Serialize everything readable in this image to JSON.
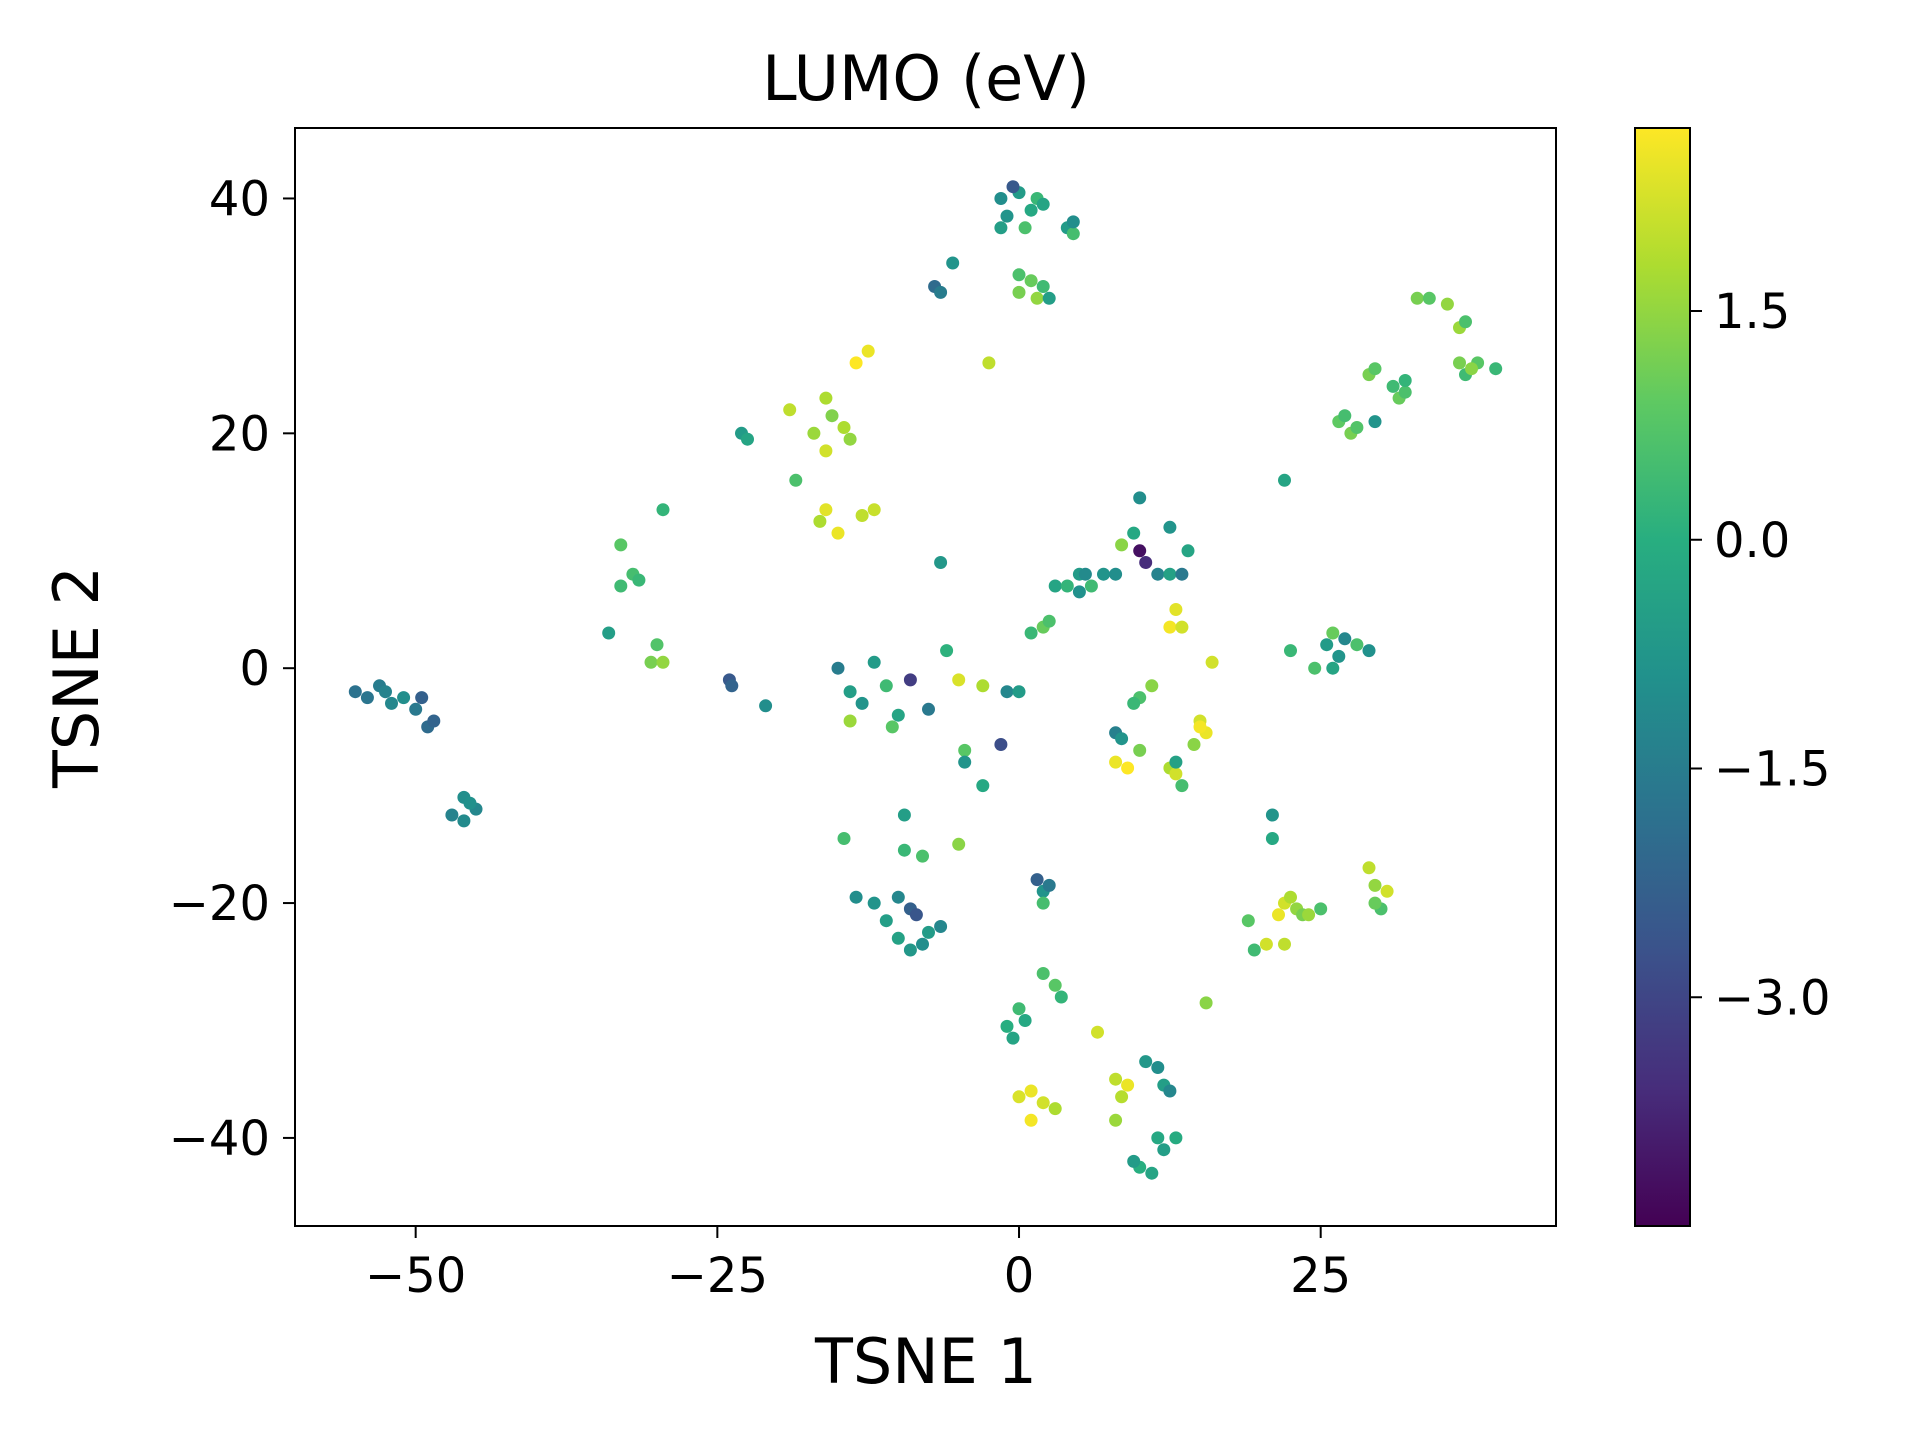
{
  "chart_data": {
    "type": "scatter",
    "title": "LUMO (eV)",
    "xlabel": "TSNE 1",
    "ylabel": "TSNE 2",
    "xlim": [
      -60,
      44.5
    ],
    "ylim": [
      -47.5,
      46
    ],
    "xticks": [
      -50,
      -25,
      0,
      25
    ],
    "xtick_labels": [
      "−50",
      "−25",
      "0",
      "25"
    ],
    "yticks": [
      -40,
      -20,
      0,
      20,
      40
    ],
    "ytick_labels": [
      "−40",
      "−20",
      "0",
      "20",
      "40"
    ],
    "grid": false,
    "legend": "none",
    "colorbar": {
      "label": "",
      "colormap": "viridis",
      "range": [
        -4.5,
        2.7
      ],
      "ticks": [
        -3.0,
        -1.5,
        0.0,
        1.5
      ],
      "tick_labels": [
        "−3.0",
        "−1.5",
        "0.0",
        "1.5"
      ]
    },
    "points": [
      {
        "x": -54,
        "y": -2.5,
        "c": -1.7
      },
      {
        "x": -53,
        "y": -1.5,
        "c": -1.5
      },
      {
        "x": -52,
        "y": -3,
        "c": -1.2
      },
      {
        "x": -51,
        "y": -2.5,
        "c": -1.0
      },
      {
        "x": -50,
        "y": -3.5,
        "c": -1.6
      },
      {
        "x": -49,
        "y": -5,
        "c": -2.0
      },
      {
        "x": -48.5,
        "y": -4.5,
        "c": -2.2
      },
      {
        "x": -49.5,
        "y": -2.5,
        "c": -2.3
      },
      {
        "x": -55,
        "y": -2,
        "c": -1.8
      },
      {
        "x": -52.5,
        "y": -2,
        "c": -1.3
      },
      {
        "x": -46,
        "y": -11,
        "c": -1.0
      },
      {
        "x": -45,
        "y": -12,
        "c": -1.2
      },
      {
        "x": -47,
        "y": -12.5,
        "c": -1.3
      },
      {
        "x": -46,
        "y": -13,
        "c": -1.1
      },
      {
        "x": -45.5,
        "y": -11.5,
        "c": -0.9
      },
      {
        "x": -33,
        "y": 10.5,
        "c": 0.8
      },
      {
        "x": -32,
        "y": 8,
        "c": 0.5
      },
      {
        "x": -31.5,
        "y": 7.5,
        "c": 0.3
      },
      {
        "x": -33,
        "y": 7,
        "c": 0.4
      },
      {
        "x": -34,
        "y": 3,
        "c": -0.5
      },
      {
        "x": -29.5,
        "y": 13.5,
        "c": 0.2
      },
      {
        "x": -30.5,
        "y": 0.5,
        "c": 1.2
      },
      {
        "x": -29.5,
        "y": 0.5,
        "c": 1.5
      },
      {
        "x": -30,
        "y": 2,
        "c": 0.7
      },
      {
        "x": -24,
        "y": -1,
        "c": -2.5
      },
      {
        "x": -23.8,
        "y": -1.5,
        "c": -2.2
      },
      {
        "x": -21,
        "y": -3.2,
        "c": -1.0
      },
      {
        "x": -23,
        "y": 20,
        "c": -0.6
      },
      {
        "x": -22.5,
        "y": 19.5,
        "c": -0.3
      },
      {
        "x": -19,
        "y": 22,
        "c": 2.0
      },
      {
        "x": -18.5,
        "y": 16,
        "c": 0.6
      },
      {
        "x": -17,
        "y": 20,
        "c": 1.6
      },
      {
        "x": -16,
        "y": 18.5,
        "c": 2.2
      },
      {
        "x": -14.5,
        "y": 20.5,
        "c": 1.8
      },
      {
        "x": -14,
        "y": 19.5,
        "c": 1.5
      },
      {
        "x": -15.5,
        "y": 21.5,
        "c": 1.3
      },
      {
        "x": -16,
        "y": 13.5,
        "c": 2.4
      },
      {
        "x": -16.5,
        "y": 12.5,
        "c": 1.8
      },
      {
        "x": -15,
        "y": 11.5,
        "c": 2.5
      },
      {
        "x": -13,
        "y": 13,
        "c": 2.0
      },
      {
        "x": -12,
        "y": 13.5,
        "c": 2.1
      },
      {
        "x": -13.5,
        "y": 26,
        "c": 2.7
      },
      {
        "x": -12.5,
        "y": 27,
        "c": 2.5
      },
      {
        "x": -16,
        "y": 23,
        "c": 1.8
      },
      {
        "x": -15,
        "y": 0,
        "c": -1.5
      },
      {
        "x": -14,
        "y": -2,
        "c": -0.5
      },
      {
        "x": -12,
        "y": 0.5,
        "c": -0.6
      },
      {
        "x": -13,
        "y": -3,
        "c": -0.8
      },
      {
        "x": -11,
        "y": -1.5,
        "c": 0.4
      },
      {
        "x": -14,
        "y": -4.5,
        "c": 1.6
      },
      {
        "x": -10.5,
        "y": -5,
        "c": 0.8
      },
      {
        "x": -10,
        "y": -4,
        "c": -0.3
      },
      {
        "x": -9,
        "y": -1,
        "c": -3.2
      },
      {
        "x": -7.5,
        "y": -3.5,
        "c": -1.6
      },
      {
        "x": -14.5,
        "y": -14.5,
        "c": 0.5
      },
      {
        "x": -9.5,
        "y": -12.5,
        "c": -0.5
      },
      {
        "x": -9.5,
        "y": -15.5,
        "c": 0.3
      },
      {
        "x": -8,
        "y": -16,
        "c": 0.6
      },
      {
        "x": -6.5,
        "y": 9,
        "c": -0.7
      },
      {
        "x": -6,
        "y": 1.5,
        "c": 0.1
      },
      {
        "x": -5,
        "y": -1,
        "c": 2.3
      },
      {
        "x": -5,
        "y": -15,
        "c": 1.4
      },
      {
        "x": -4.5,
        "y": -7,
        "c": 0.8
      },
      {
        "x": -4.5,
        "y": -8,
        "c": -0.8
      },
      {
        "x": -3,
        "y": -10,
        "c": -0.2
      },
      {
        "x": -3,
        "y": -1.5,
        "c": 1.8
      },
      {
        "x": -1.5,
        "y": -6.5,
        "c": -2.8
      },
      {
        "x": -1,
        "y": -2,
        "c": -1.2
      },
      {
        "x": 0,
        "y": -2,
        "c": -0.6
      },
      {
        "x": -12,
        "y": -20,
        "c": -0.8
      },
      {
        "x": -11,
        "y": -21.5,
        "c": -0.5
      },
      {
        "x": -10,
        "y": -19.5,
        "c": -1.2
      },
      {
        "x": -9,
        "y": -20.5,
        "c": -2.3
      },
      {
        "x": -8.5,
        "y": -21,
        "c": -2.6
      },
      {
        "x": -10,
        "y": -23,
        "c": -0.4
      },
      {
        "x": -9,
        "y": -24,
        "c": -0.7
      },
      {
        "x": -8,
        "y": -23.5,
        "c": -1.0
      },
      {
        "x": -7.5,
        "y": -22.5,
        "c": -0.6
      },
      {
        "x": -6.5,
        "y": -22,
        "c": -1.2
      },
      {
        "x": -13.5,
        "y": -19.5,
        "c": -1.0
      },
      {
        "x": -7,
        "y": 32.5,
        "c": -2.0
      },
      {
        "x": -6.5,
        "y": 32,
        "c": -1.5
      },
      {
        "x": -5.5,
        "y": 34.5,
        "c": -0.8
      },
      {
        "x": -2.5,
        "y": 26,
        "c": 2.0
      },
      {
        "x": -1,
        "y": 38.5,
        "c": -0.8
      },
      {
        "x": 0,
        "y": 40.5,
        "c": -0.6
      },
      {
        "x": 1,
        "y": 39,
        "c": -0.2
      },
      {
        "x": 0.5,
        "y": 37.5,
        "c": 0.6
      },
      {
        "x": -1.5,
        "y": 40,
        "c": -1.0
      },
      {
        "x": 1.5,
        "y": 40,
        "c": 0.3
      },
      {
        "x": -0.5,
        "y": 41,
        "c": -2.5
      },
      {
        "x": 2,
        "y": 39.5,
        "c": -0.3
      },
      {
        "x": -1.5,
        "y": 37.5,
        "c": -0.5
      },
      {
        "x": 4,
        "y": 37.5,
        "c": -0.6
      },
      {
        "x": 4.5,
        "y": 37,
        "c": 0.5
      },
      {
        "x": 4.5,
        "y": 38,
        "c": -1.0
      },
      {
        "x": 0,
        "y": 33.5,
        "c": 0.6
      },
      {
        "x": 1,
        "y": 33,
        "c": 1.0
      },
      {
        "x": 2,
        "y": 32.5,
        "c": 0.4
      },
      {
        "x": 0,
        "y": 32,
        "c": 1.2
      },
      {
        "x": 1.5,
        "y": 31.5,
        "c": 1.5
      },
      {
        "x": 2.5,
        "y": 31.5,
        "c": -0.5
      },
      {
        "x": 2,
        "y": 3.5,
        "c": 1.0
      },
      {
        "x": 2.5,
        "y": 4,
        "c": 0.6
      },
      {
        "x": 3,
        "y": 7,
        "c": -0.3
      },
      {
        "x": 4,
        "y": 7,
        "c": 0.2
      },
      {
        "x": 5,
        "y": 8,
        "c": -0.6
      },
      {
        "x": 5,
        "y": 6.5,
        "c": -0.9
      },
      {
        "x": 5.5,
        "y": 8,
        "c": -1.1
      },
      {
        "x": 6,
        "y": 7,
        "c": 0.4
      },
      {
        "x": 7,
        "y": 8,
        "c": -0.8
      },
      {
        "x": 8,
        "y": 8,
        "c": -1.0
      },
      {
        "x": 8.5,
        "y": 10.5,
        "c": 1.4
      },
      {
        "x": 9.5,
        "y": 11.5,
        "c": -0.2
      },
      {
        "x": 10,
        "y": 14.5,
        "c": -1.0
      },
      {
        "x": 10,
        "y": 10,
        "c": -4.2
      },
      {
        "x": 10.5,
        "y": 9,
        "c": -3.6
      },
      {
        "x": 11.5,
        "y": 8,
        "c": -1.3
      },
      {
        "x": 12.5,
        "y": 12,
        "c": -0.8
      },
      {
        "x": 12.5,
        "y": 8,
        "c": -0.4
      },
      {
        "x": 13,
        "y": 5,
        "c": 2.4
      },
      {
        "x": 13.5,
        "y": 8,
        "c": -1.6
      },
      {
        "x": 14,
        "y": 10,
        "c": -0.3
      },
      {
        "x": 12.5,
        "y": 3.5,
        "c": 2.6
      },
      {
        "x": 13.5,
        "y": 3.5,
        "c": 2.2
      },
      {
        "x": 16,
        "y": 0.5,
        "c": 2.2
      },
      {
        "x": 1,
        "y": 3,
        "c": 0.3
      },
      {
        "x": 8,
        "y": -5.5,
        "c": -1.4
      },
      {
        "x": 8.5,
        "y": -6,
        "c": -0.8
      },
      {
        "x": 8,
        "y": -8,
        "c": 2.5
      },
      {
        "x": 9,
        "y": -8.5,
        "c": 2.8
      },
      {
        "x": 10,
        "y": -2.5,
        "c": 0.6
      },
      {
        "x": 11,
        "y": -1.5,
        "c": 1.4
      },
      {
        "x": 9.5,
        "y": -3,
        "c": 0.3
      },
      {
        "x": 10,
        "y": -7,
        "c": 1.2
      },
      {
        "x": 12.5,
        "y": -8.5,
        "c": 1.8
      },
      {
        "x": 13,
        "y": -9,
        "c": 2.2
      },
      {
        "x": 13.5,
        "y": -10,
        "c": 0.5
      },
      {
        "x": 13,
        "y": -8,
        "c": -0.4
      },
      {
        "x": 15,
        "y": -4.5,
        "c": 2.2
      },
      {
        "x": 15.5,
        "y": -5.5,
        "c": 2.5
      },
      {
        "x": 14.5,
        "y": -6.5,
        "c": 1.4
      },
      {
        "x": 15,
        "y": -5,
        "c": 2.6
      },
      {
        "x": 1.5,
        "y": -18,
        "c": -2.3
      },
      {
        "x": 2,
        "y": -19,
        "c": -0.8
      },
      {
        "x": 2,
        "y": -20,
        "c": 0.5
      },
      {
        "x": 2.5,
        "y": -18.5,
        "c": -1.6
      },
      {
        "x": 2,
        "y": -26,
        "c": 0.6
      },
      {
        "x": 3,
        "y": -27,
        "c": 0.8
      },
      {
        "x": 3.5,
        "y": -28,
        "c": 0.2
      },
      {
        "x": 0,
        "y": -29,
        "c": 0.4
      },
      {
        "x": 0.5,
        "y": -30,
        "c": -0.2
      },
      {
        "x": -1,
        "y": -30.5,
        "c": 0.0
      },
      {
        "x": -0.5,
        "y": -31.5,
        "c": -0.3
      },
      {
        "x": 0,
        "y": -36.5,
        "c": 2.3
      },
      {
        "x": 1,
        "y": -36,
        "c": 2.5
      },
      {
        "x": 2,
        "y": -37,
        "c": 2.2
      },
      {
        "x": 1,
        "y": -38.5,
        "c": 2.6
      },
      {
        "x": 3,
        "y": -37.5,
        "c": 1.8
      },
      {
        "x": 6.5,
        "y": -31,
        "c": 2.2
      },
      {
        "x": 8,
        "y": -35,
        "c": 2.0
      },
      {
        "x": 8.5,
        "y": -36.5,
        "c": 1.9
      },
      {
        "x": 9,
        "y": -35.5,
        "c": 2.5
      },
      {
        "x": 8,
        "y": -38.5,
        "c": 1.6
      },
      {
        "x": 10.5,
        "y": -33.5,
        "c": -0.7
      },
      {
        "x": 11.5,
        "y": -34,
        "c": -1.0
      },
      {
        "x": 12,
        "y": -35.5,
        "c": -0.5
      },
      {
        "x": 12.5,
        "y": -36,
        "c": -1.2
      },
      {
        "x": 11.5,
        "y": -40,
        "c": -0.2
      },
      {
        "x": 12,
        "y": -41,
        "c": -0.5
      },
      {
        "x": 13,
        "y": -40,
        "c": -0.1
      },
      {
        "x": 10,
        "y": -42.5,
        "c": 0.0
      },
      {
        "x": 11,
        "y": -43,
        "c": -0.3
      },
      {
        "x": 9.5,
        "y": -42,
        "c": -0.6
      },
      {
        "x": 15.5,
        "y": -28.5,
        "c": 1.4
      },
      {
        "x": 21,
        "y": -12.5,
        "c": -0.8
      },
      {
        "x": 21,
        "y": -14.5,
        "c": -0.2
      },
      {
        "x": 19,
        "y": -21.5,
        "c": 0.8
      },
      {
        "x": 19.5,
        "y": -24,
        "c": 0.4
      },
      {
        "x": 20.5,
        "y": -23.5,
        "c": 2.2
      },
      {
        "x": 21.5,
        "y": -21,
        "c": 2.5
      },
      {
        "x": 22,
        "y": -20,
        "c": 2.2
      },
      {
        "x": 22.5,
        "y": -19.5,
        "c": 1.8
      },
      {
        "x": 23,
        "y": -20.5,
        "c": 1.5
      },
      {
        "x": 22,
        "y": -23.5,
        "c": 2.0
      },
      {
        "x": 23.5,
        "y": -21,
        "c": 1.2
      },
      {
        "x": 25,
        "y": -20.5,
        "c": 0.6
      },
      {
        "x": 24,
        "y": -21,
        "c": 1.6
      },
      {
        "x": 29,
        "y": -17,
        "c": 2.0
      },
      {
        "x": 29.5,
        "y": -18.5,
        "c": 1.5
      },
      {
        "x": 30,
        "y": -20.5,
        "c": 0.6
      },
      {
        "x": 30.5,
        "y": -19,
        "c": 2.2
      },
      {
        "x": 29.5,
        "y": -20,
        "c": 1.0
      },
      {
        "x": 22.5,
        "y": 1.5,
        "c": 0.3
      },
      {
        "x": 24.5,
        "y": 0,
        "c": 0.6
      },
      {
        "x": 25.5,
        "y": 2,
        "c": -0.6
      },
      {
        "x": 26,
        "y": 3,
        "c": 1.0
      },
      {
        "x": 26.5,
        "y": 1,
        "c": -0.8
      },
      {
        "x": 26,
        "y": 0,
        "c": -0.3
      },
      {
        "x": 27,
        "y": 2.5,
        "c": -1.2
      },
      {
        "x": 28,
        "y": 2,
        "c": 0.6
      },
      {
        "x": 29,
        "y": 1.5,
        "c": -0.9
      },
      {
        "x": 22,
        "y": 16,
        "c": -0.3
      },
      {
        "x": 26.5,
        "y": 21,
        "c": 0.9
      },
      {
        "x": 27.5,
        "y": 20,
        "c": 1.2
      },
      {
        "x": 27,
        "y": 21.5,
        "c": 0.5
      },
      {
        "x": 28,
        "y": 20.5,
        "c": 0.7
      },
      {
        "x": 29.5,
        "y": 21,
        "c": -0.8
      },
      {
        "x": 29,
        "y": 25,
        "c": 1.2
      },
      {
        "x": 29.5,
        "y": 25.5,
        "c": 0.8
      },
      {
        "x": 31,
        "y": 24,
        "c": 0.4
      },
      {
        "x": 31.5,
        "y": 23,
        "c": 1.0
      },
      {
        "x": 32,
        "y": 23.5,
        "c": 0.6
      },
      {
        "x": 32,
        "y": 24.5,
        "c": 0.2
      },
      {
        "x": 33,
        "y": 31.5,
        "c": 1.2
      },
      {
        "x": 34,
        "y": 31.5,
        "c": 0.8
      },
      {
        "x": 35.5,
        "y": 31,
        "c": 1.5
      },
      {
        "x": 36.5,
        "y": 29,
        "c": 1.6
      },
      {
        "x": 37,
        "y": 29.5,
        "c": 0.6
      },
      {
        "x": 36.5,
        "y": 26,
        "c": 1.2
      },
      {
        "x": 37,
        "y": 25,
        "c": 0.4
      },
      {
        "x": 38,
        "y": 26,
        "c": 0.8
      },
      {
        "x": 37.5,
        "y": 25.5,
        "c": 1.4
      },
      {
        "x": 39.5,
        "y": 25.5,
        "c": 0.3
      }
    ]
  }
}
